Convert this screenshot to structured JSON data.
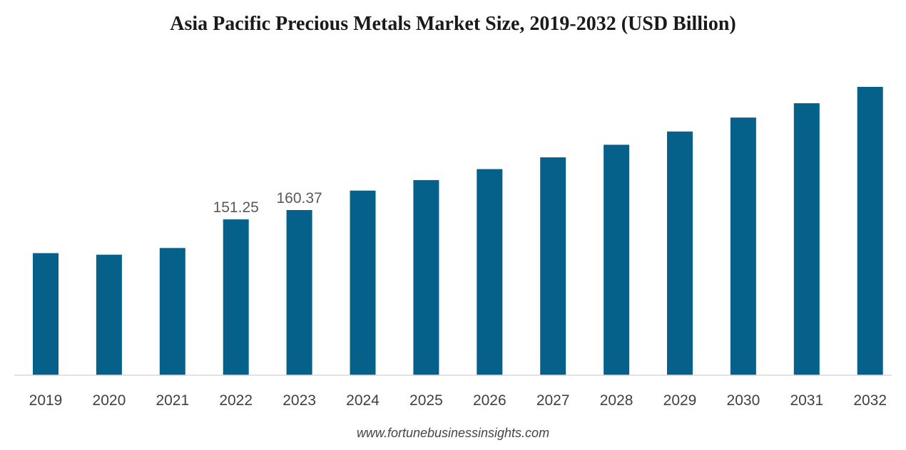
{
  "chart_data": {
    "type": "bar",
    "title": "Asia Pacific Precious Metals Market Size, 2019-2032 (USD Billion)",
    "categories": [
      "2019",
      "2020",
      "2021",
      "2022",
      "2023",
      "2024",
      "2025",
      "2026",
      "2027",
      "2028",
      "2029",
      "2030",
      "2031",
      "2032"
    ],
    "values": [
      118.5,
      117.0,
      123.5,
      151.25,
      160.37,
      179.2,
      189.4,
      200.1,
      211.5,
      223.7,
      236.6,
      250.1,
      264.0,
      279.9
    ],
    "data_labels": {
      "3": "151.25",
      "4": "160.37"
    },
    "ylim": [
      0,
      279.9
    ],
    "bar_color": "#05618a",
    "grid": false,
    "legend": "none"
  },
  "source": "www.fortunebusinessinsights.com"
}
